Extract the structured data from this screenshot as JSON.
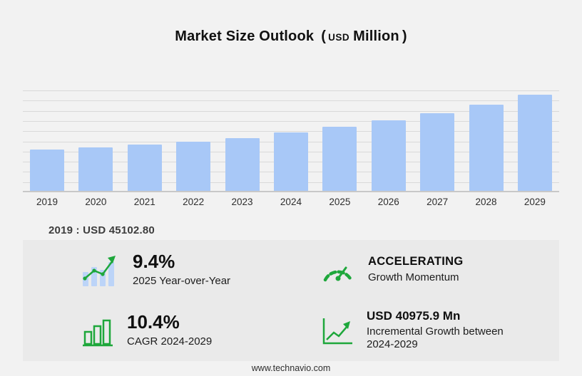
{
  "title": {
    "main": "Market Size Outlook",
    "open": "(",
    "currency": "USD",
    "unit": "Million",
    "close": ")"
  },
  "chart_data": {
    "type": "bar",
    "title": "Market Size Outlook (USD Million)",
    "categories": [
      "2019",
      "2020",
      "2021",
      "2022",
      "2023",
      "2024",
      "2025",
      "2026",
      "2027",
      "2028",
      "2029"
    ],
    "values": [
      45102.8,
      47600,
      50500,
      54000,
      58100,
      64035,
      70055,
      77340,
      85384,
      94264,
      105011
    ],
    "unit": "USD Million",
    "ylim": [
      0,
      110000
    ],
    "grid": true,
    "legend": false,
    "bar_color": "#a8c8f7"
  },
  "annotation": {
    "text": "2019 : USD 45102.80"
  },
  "stats": {
    "yoy": {
      "icon": "yoy-growth-icon",
      "value": "9.4%",
      "label": "2025 Year-over-Year"
    },
    "momentum": {
      "icon": "speedometer-icon",
      "value": "ACCELERATING",
      "label": "Growth Momentum"
    },
    "cagr": {
      "icon": "cagr-bars-icon",
      "value": "10.4%",
      "label": "CAGR 2024-2029"
    },
    "incremental": {
      "icon": "incremental-growth-icon",
      "value": "USD 40975.9 Mn",
      "label": "Incremental Growth between 2024-2029"
    }
  },
  "footer": {
    "url": "www.technavio.com"
  },
  "colors": {
    "accent_green": "#1ea73b",
    "bar_blue": "#a8c8f7",
    "panel_bg": "#eaeaea",
    "page_bg": "#f2f2f2"
  }
}
